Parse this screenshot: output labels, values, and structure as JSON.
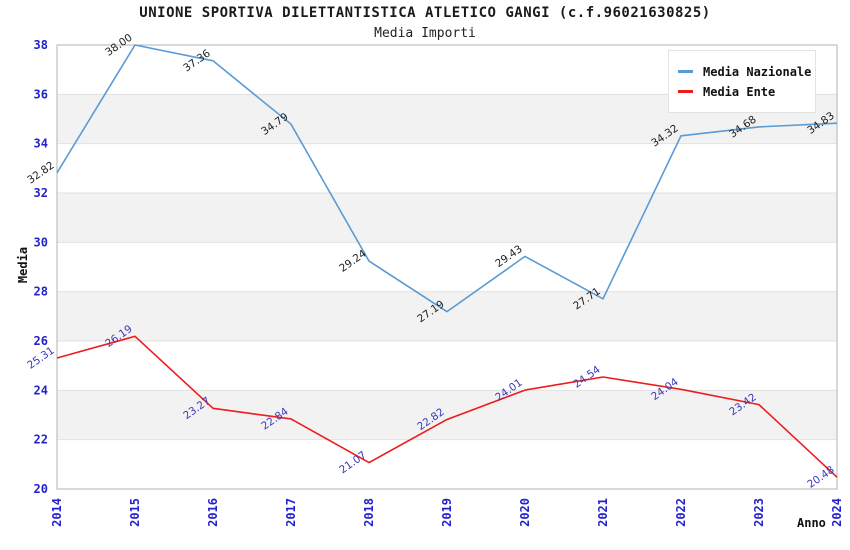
{
  "chart_data": {
    "type": "line",
    "title": "UNIONE SPORTIVA DILETTANTISTICA ATLETICO GANGI (c.f.96021630825)",
    "subtitle": "Media Importi",
    "xlabel": "Anno",
    "ylabel": "Media",
    "x": [
      "2014",
      "2015",
      "2016",
      "2017",
      "2018",
      "2019",
      "2020",
      "2021",
      "2022",
      "2023",
      "2024"
    ],
    "series": [
      {
        "name": "Media Nazionale",
        "color": "#5a9bd5",
        "label_color": "#1f1f1f",
        "values": [
          32.82,
          38.0,
          37.36,
          34.79,
          29.24,
          27.19,
          29.43,
          27.71,
          34.32,
          34.68,
          34.83
        ]
      },
      {
        "name": "Media Ente",
        "color": "#ee1c1c",
        "label_color": "#3939b8",
        "values": [
          25.31,
          26.19,
          23.27,
          22.84,
          21.07,
          22.82,
          24.01,
          24.54,
          24.04,
          23.42,
          20.48
        ]
      }
    ],
    "ylim": [
      20,
      38
    ],
    "ytick_step": 2,
    "grid": "horizontal-bands",
    "band_colors": [
      "#ffffff",
      "#f2f2f2"
    ],
    "gridline_color": "#e2e2e2",
    "plot_border_color": "#b3b3b3",
    "axis_tick_label_color": "#2323cc",
    "legend_position": "top-right",
    "data_labels_decimals": 2
  }
}
